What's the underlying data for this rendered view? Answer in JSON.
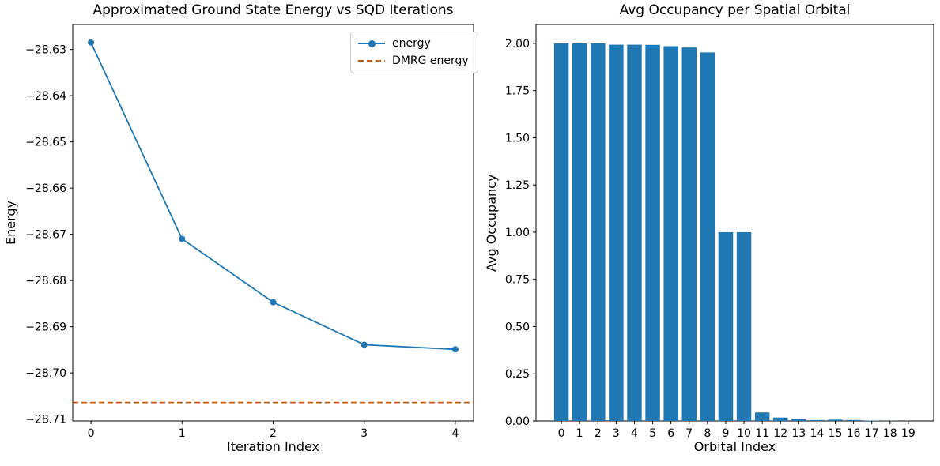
{
  "figure": {
    "background": "#ffffff"
  },
  "colors": {
    "series_blue": "#1f77b4",
    "dmrg_orange": "#c9590e",
    "axis": "#000000",
    "legend_border": "#cccccc"
  },
  "chart_data": [
    {
      "type": "line",
      "title": "Approximated Ground State Energy vs SQD Iterations",
      "xlabel": "Iteration Index",
      "ylabel": "Energy",
      "x": [
        0,
        1,
        2,
        3,
        4
      ],
      "series": [
        {
          "name": "energy",
          "color": "#1f77b4",
          "marker": "circle",
          "values": [
            -28.6285,
            -28.671,
            -28.6847,
            -28.6939,
            -28.6949
          ]
        }
      ],
      "hline": {
        "name": "DMRG energy",
        "value": -28.7064,
        "color": "#c9590e",
        "style": "dashed"
      },
      "xlim": [
        -0.2,
        4.2
      ],
      "ylim": [
        -28.7104,
        -28.6246
      ],
      "xticks": [
        0,
        1,
        2,
        3,
        4
      ],
      "xtick_labels": [
        "0",
        "1",
        "2",
        "3",
        "4"
      ],
      "yticks": [
        -28.63,
        -28.64,
        -28.65,
        -28.66,
        -28.67,
        -28.68,
        -28.69,
        -28.7,
        -28.71
      ],
      "ytick_labels": [
        "−28.63",
        "−28.64",
        "−28.65",
        "−28.66",
        "−28.67",
        "−28.68",
        "−28.69",
        "−28.70",
        "−28.71"
      ],
      "grid": false,
      "legend": {
        "position": "upper right",
        "entries": [
          {
            "label": "energy",
            "color": "#1f77b4",
            "line": "solid-marker"
          },
          {
            "label": "DMRG energy",
            "color": "#c9590e",
            "line": "dashed"
          }
        ]
      }
    },
    {
      "type": "bar",
      "title": "Avg Occupancy per Spatial Orbital",
      "xlabel": "Orbital Index",
      "ylabel": "Avg Occupancy",
      "categories": [
        "0",
        "1",
        "2",
        "3",
        "4",
        "5",
        "6",
        "7",
        "8",
        "9",
        "10",
        "11",
        "12",
        "13",
        "14",
        "15",
        "16",
        "17",
        "18",
        "19"
      ],
      "values": [
        2.0,
        2.0,
        2.0,
        1.993,
        1.993,
        1.992,
        1.985,
        1.978,
        1.952,
        1.0,
        1.0,
        0.045,
        0.018,
        0.011,
        0.005,
        0.007,
        0.005,
        0.002,
        0.001,
        0.0005
      ],
      "bar_color": "#1f77b4",
      "bar_width": 0.8,
      "xlim": [
        -1.39,
        20.39
      ],
      "ylim": [
        0,
        2.1
      ],
      "yticks": [
        0,
        0.25,
        0.5,
        0.75,
        1.0,
        1.25,
        1.5,
        1.75,
        2.0
      ],
      "ytick_labels": [
        "0.00",
        "0.25",
        "0.50",
        "0.75",
        "1.00",
        "1.25",
        "1.50",
        "1.75",
        "2.00"
      ],
      "grid": false,
      "legend": null
    }
  ]
}
